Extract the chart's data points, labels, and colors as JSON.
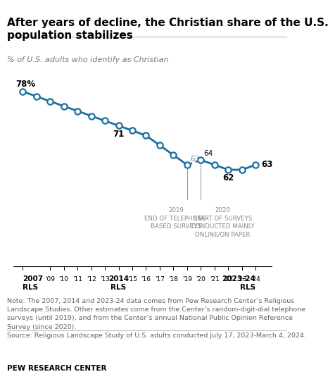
{
  "title_line1": "After years of decline, the Christian share of the U.S.",
  "title_line2": "population stabilizes",
  "subtitle": "% of U.S. adults who identify as Christian",
  "phone_series_x": [
    2007,
    2008,
    2009,
    2010,
    2011,
    2012,
    2013,
    2014,
    2015,
    2016,
    2017,
    2018,
    2019
  ],
  "phone_series_y": [
    78,
    77,
    76,
    75,
    74,
    73,
    72,
    71,
    70,
    69,
    67,
    65,
    63
  ],
  "online_series_x": [
    2020,
    2021,
    2022,
    2023,
    2024
  ],
  "online_series_y": [
    64,
    63,
    62,
    62,
    63
  ],
  "line_color": "#1c6fa0",
  "dot_facecolor": "white",
  "dot_edgecolor": "#1c6fa0",
  "dot_size": 6,
  "dot_linewidth": 1.6,
  "tick_years": [
    2007,
    2009,
    2010,
    2011,
    2012,
    2013,
    2014,
    2015,
    2016,
    2017,
    2018,
    2019,
    2020,
    2021,
    2022,
    2023,
    2024
  ],
  "label_years": [
    2009,
    2010,
    2011,
    2012,
    2013,
    2015,
    2016,
    2017,
    2018,
    2019,
    2020,
    2021,
    2022,
    2023,
    2024
  ],
  "note_text": "Note: The 2007, 2014 and 2023-24 data comes from Pew Research Center’s Religious\nLandscape Studies. Other estimates come from the Center’s random-digit-dial telephone\nsurveys (until 2019), and from the Center’s annual National Public Opinion Reference\nSurvey (since 2020).\nSource: Religious Landscape Study of U.S. adults conducted July 17, 2023-March 4, 2024.",
  "footer": "PEW RESEARCH CENTER",
  "xlim_left": 2006.3,
  "xlim_right": 2025.2,
  "ylim_bottom": 55,
  "ylim_top": 83
}
